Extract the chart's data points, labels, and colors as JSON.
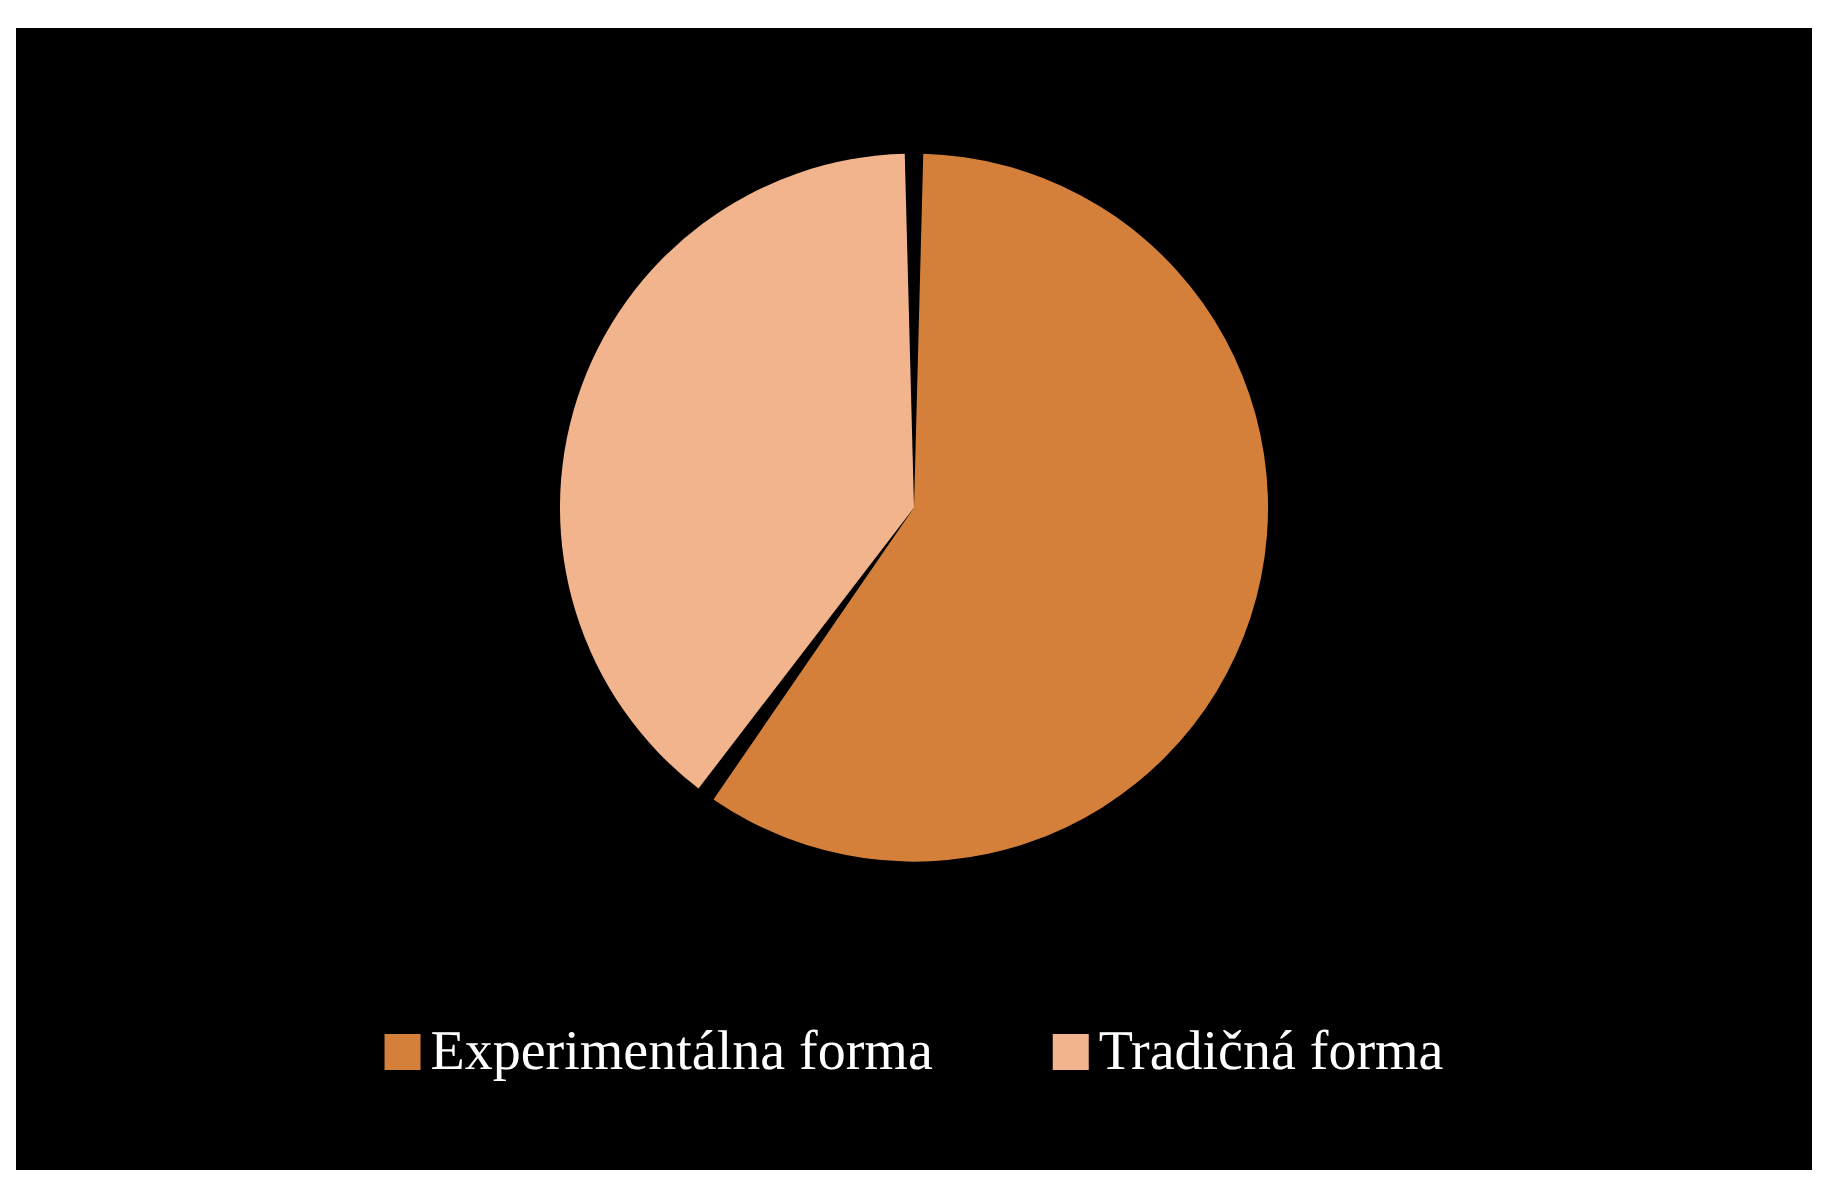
{
  "chart_data": {
    "type": "pie",
    "categories": [
      "Experimentálna forma",
      "Tradičná forma"
    ],
    "values": [
      60,
      40
    ],
    "colors": [
      "#d4803a",
      "#f2b48c"
    ],
    "legend": "bottom"
  }
}
